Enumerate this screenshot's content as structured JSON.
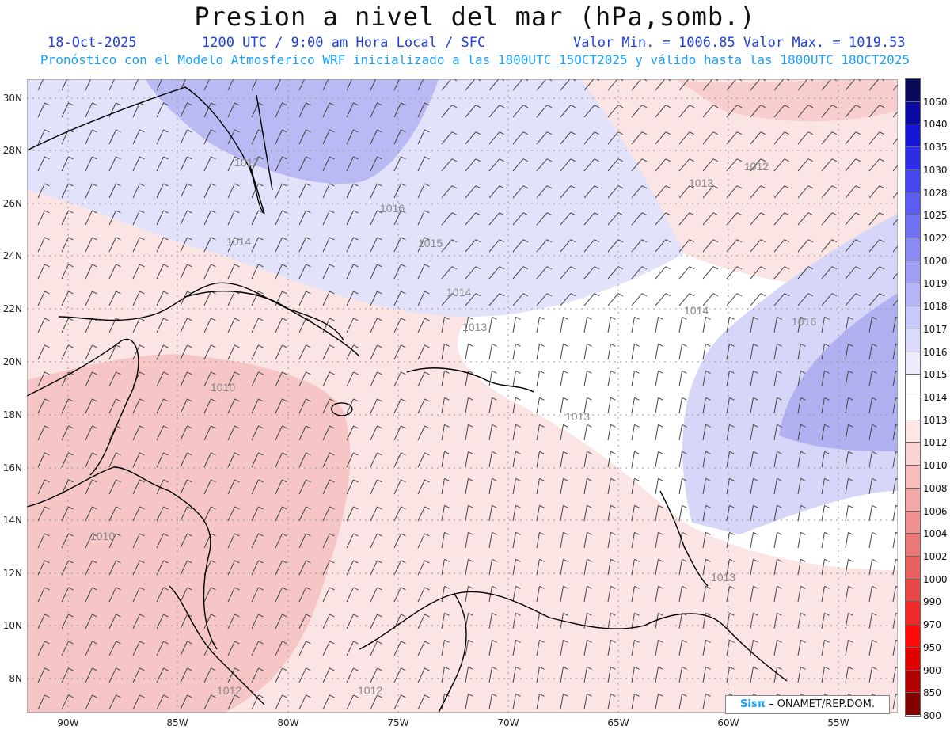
{
  "header": {
    "title": "Presion a nivel del mar (hPa,somb.)",
    "date": "18-Oct-2025",
    "time_info": "1200 UTC / 9:00 am Hora Local / SFC",
    "value_range": "Valor Min. = 1006.85  Valor Max. = 1019.53",
    "model_info": "Pronóstico con el Modelo Atmosferico WRF inicializado a las 1800UTC_15OCT2025 y válido hasta las  1800UTC_18OCT2025"
  },
  "map": {
    "lat_labels": [
      "30N",
      "28N",
      "26N",
      "24N",
      "22N",
      "20N",
      "18N",
      "16N",
      "14N",
      "12N",
      "10N",
      "8N"
    ],
    "lon_labels": [
      "90W",
      "85W",
      "80W",
      "75W",
      "70W",
      "65W",
      "60W",
      "55W"
    ],
    "contour_labels": [
      "1017",
      "1016",
      "1015",
      "1014",
      "1013",
      "1012",
      "1010"
    ],
    "colors": {
      "low": "#f5c2c2",
      "mid": "#ffffff",
      "high": "#a8a8f0"
    }
  },
  "colorbar": {
    "levels": [
      "1050",
      "1040",
      "1035",
      "1030",
      "1028",
      "1025",
      "1022",
      "1020",
      "1019",
      "1018",
      "1017",
      "1016",
      "1015",
      "1014",
      "1013",
      "1012",
      "1010",
      "1008",
      "1006",
      "1004",
      "1002",
      "1000",
      "990",
      "970",
      "950",
      "900",
      "850",
      "800"
    ],
    "colors": [
      "#0a0a5a",
      "#0a0aa0",
      "#1515d8",
      "#2d2de8",
      "#4646ee",
      "#5c5cf0",
      "#7272f2",
      "#8a8af4",
      "#9f9ff6",
      "#b4b4f8",
      "#c8c8fa",
      "#dadafc",
      "#ececfe",
      "#ffffff",
      "#ffffff",
      "#fde6e6",
      "#fad2d2",
      "#f7bdbd",
      "#f4a8a8",
      "#f09090",
      "#ec7878",
      "#e86060",
      "#e64848",
      "#ef2828",
      "#ff0a0a",
      "#e00000",
      "#b00000",
      "#800000"
    ]
  },
  "credit": {
    "brand": "Sisπ",
    "text": " – ONAMET/REP.DOM."
  }
}
